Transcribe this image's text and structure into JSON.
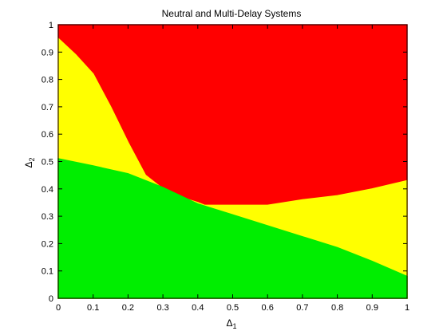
{
  "chart_data": {
    "type": "area",
    "title": "Neutral and Multi-Delay Systems",
    "xlabel_symbol": "Δ",
    "xlabel_sub": "1",
    "ylabel_symbol": "Δ",
    "ylabel_sub": "2",
    "xlim": [
      0,
      1
    ],
    "ylim": [
      0,
      1
    ],
    "xticks": [
      "0",
      "0.1",
      "0.2",
      "0.3",
      "0.4",
      "0.5",
      "0.6",
      "0.7",
      "0.8",
      "0.9",
      "1"
    ],
    "yticks": [
      "0",
      "0.1",
      "0.2",
      "0.3",
      "0.4",
      "0.5",
      "0.6",
      "0.7",
      "0.8",
      "0.9",
      "1"
    ],
    "grid": false,
    "regions": [
      {
        "name": "green",
        "color": "#00ee00",
        "upper_boundary": {
          "x": [
            0,
            0.1,
            0.2,
            0.3,
            0.4,
            0.5,
            0.6,
            0.7,
            0.8,
            0.9,
            1.0
          ],
          "y": [
            0.51,
            0.484,
            0.455,
            0.405,
            0.345,
            0.305,
            0.265,
            0.225,
            0.185,
            0.135,
            0.08
          ]
        }
      },
      {
        "name": "yellow",
        "color": "#ffff00",
        "upper_boundary": {
          "x": [
            0,
            0.05,
            0.1,
            0.15,
            0.2,
            0.25,
            0.3,
            0.35,
            0.4,
            0.42,
            0.5,
            0.6,
            0.7,
            0.8,
            0.9,
            1.0
          ],
          "y": [
            0.95,
            0.89,
            0.82,
            0.7,
            0.57,
            0.45,
            0.4,
            0.37,
            0.35,
            0.34,
            0.34,
            0.34,
            0.36,
            0.375,
            0.4,
            0.43
          ]
        }
      },
      {
        "name": "red",
        "color": "#ff0000",
        "upper_boundary": {
          "x": [
            0,
            1
          ],
          "y": [
            1,
            1
          ]
        }
      }
    ]
  }
}
